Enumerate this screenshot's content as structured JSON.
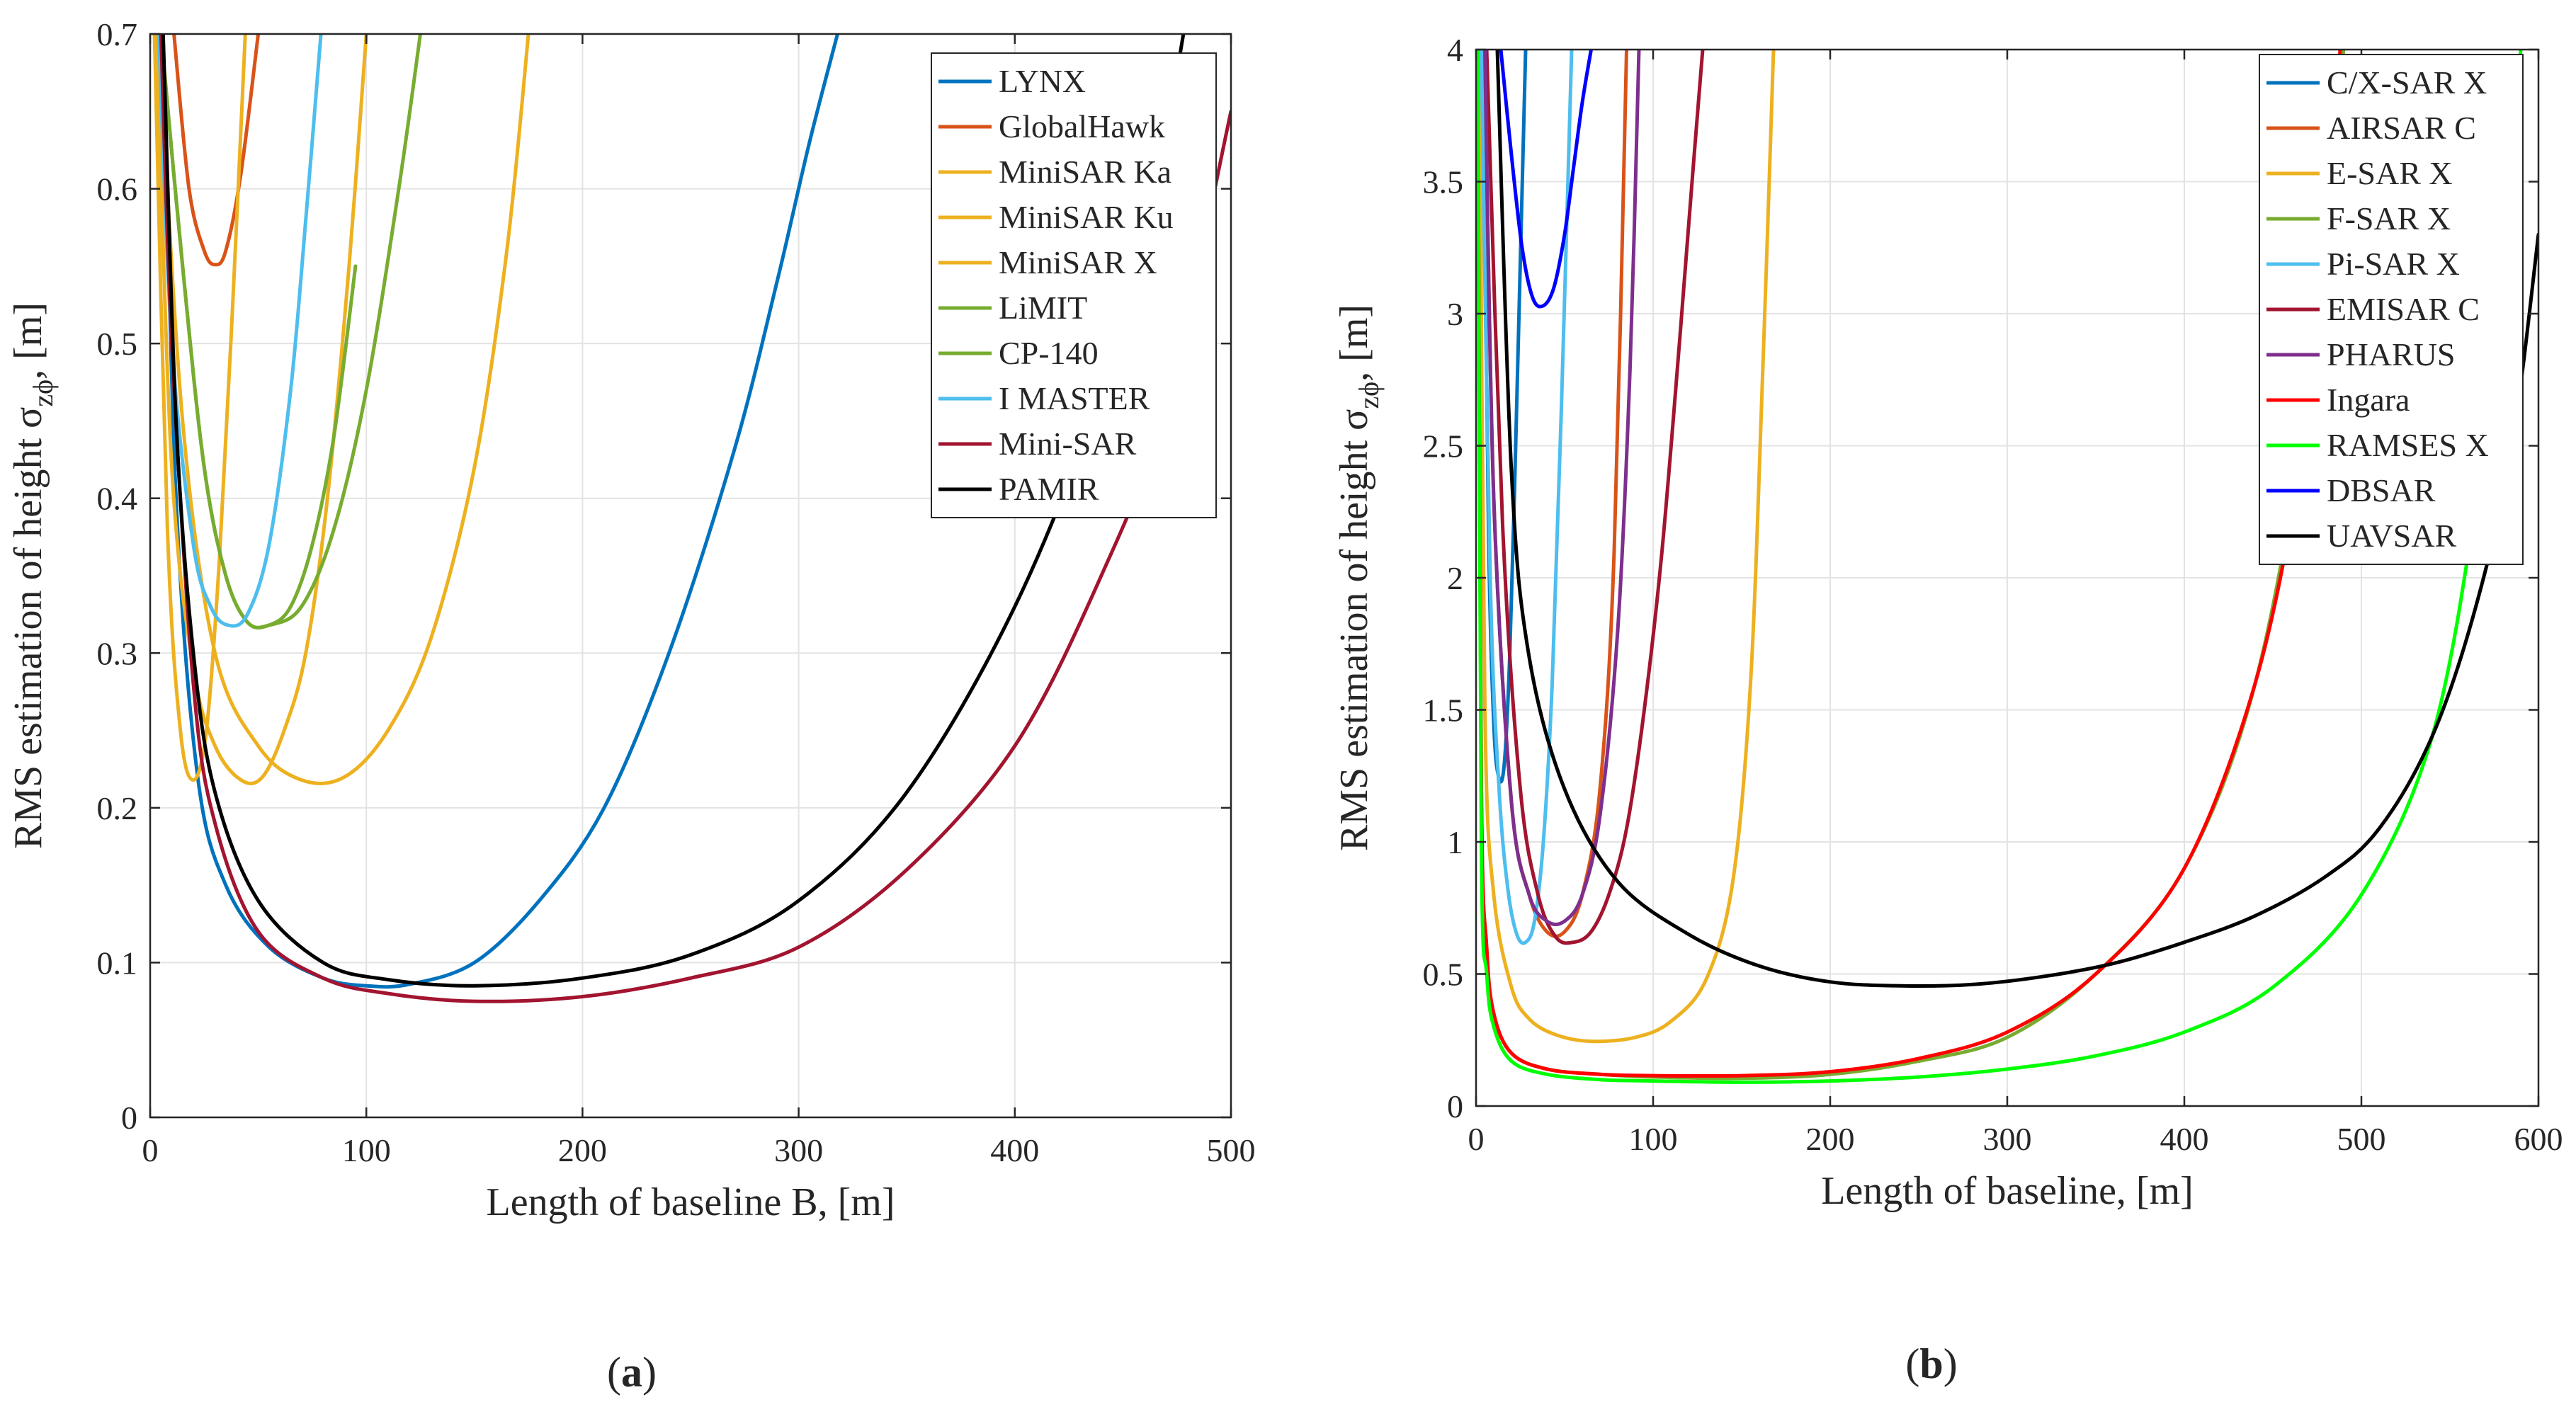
{
  "chart_data": [
    {
      "type": "line",
      "ylabel_main": "RMS estimation of height σ",
      "ylabel_sub": "zϕ",
      "ylabel_tail": ", [m]",
      "xlabel": "Length of baseline B, [m]",
      "xlim": [
        0,
        500
      ],
      "ylim": [
        0,
        0.7
      ],
      "xticks": [
        0,
        100,
        200,
        300,
        400,
        500
      ],
      "yticks": [
        0,
        0.1,
        0.2,
        0.3,
        0.4,
        0.5,
        0.6,
        0.7
      ],
      "xtick_labels": [
        "0",
        "100",
        "200",
        "300",
        "400",
        "500"
      ],
      "ytick_labels": [
        "0",
        "0.1",
        "0.2",
        "0.3",
        "0.4",
        "0.5",
        "0.6",
        "0.7"
      ],
      "grid": true,
      "legend_position": "top-right",
      "panel_label": "(a)",
      "series": [
        {
          "name": "LYNX",
          "color": "#0072BD",
          "x": [
            6,
            12,
            22,
            35,
            55,
            80,
            100,
            120,
            150,
            180,
            210,
            240,
            270,
            290,
            305,
            318
          ],
          "y": [
            0.7,
            0.4,
            0.22,
            0.15,
            0.11,
            0.09,
            0.085,
            0.086,
            0.1,
            0.14,
            0.2,
            0.3,
            0.43,
            0.54,
            0.63,
            0.7
          ]
        },
        {
          "name": "GlobalHawk",
          "color": "#D95319",
          "x": [
            11,
            18,
            25,
            30,
            35,
            42,
            50
          ],
          "y": [
            0.7,
            0.6,
            0.56,
            0.551,
            0.56,
            0.61,
            0.7
          ]
        },
        {
          "name": "MiniSAR Ka",
          "color": "#EDB120",
          "x": [
            2,
            8,
            14,
            20,
            26,
            32,
            38,
            44
          ],
          "y": [
            0.7,
            0.38,
            0.25,
            0.218,
            0.25,
            0.36,
            0.52,
            0.7
          ]
        },
        {
          "name": "MiniSAR Ku",
          "color": "#EDB120",
          "x": [
            3,
            10,
            20,
            30,
            42,
            52,
            62,
            72,
            82,
            92,
            100
          ],
          "y": [
            0.7,
            0.42,
            0.29,
            0.24,
            0.218,
            0.22,
            0.25,
            0.3,
            0.4,
            0.55,
            0.7
          ]
        },
        {
          "name": "MiniSAR X",
          "color": "#EDB120",
          "x": [
            4,
            15,
            30,
            50,
            70,
            90,
            110,
            130,
            150,
            165,
            175
          ],
          "y": [
            0.7,
            0.45,
            0.3,
            0.24,
            0.218,
            0.22,
            0.25,
            0.31,
            0.42,
            0.56,
            0.7
          ]
        },
        {
          "name": "LiMIT",
          "color": "#77AC30",
          "x": [
            5,
            15,
            25,
            35,
            45,
            55,
            65,
            75,
            85,
            95
          ],
          "y": [
            0.7,
            0.55,
            0.42,
            0.35,
            0.32,
            0.318,
            0.33,
            0.37,
            0.44,
            0.55
          ]
        },
        {
          "name": "CP-140",
          "color": "#77AC30",
          "x": [
            5,
            15,
            25,
            35,
            45,
            55,
            70,
            85,
            100,
            115,
            125
          ],
          "y": [
            0.7,
            0.55,
            0.42,
            0.35,
            0.32,
            0.318,
            0.33,
            0.38,
            0.47,
            0.6,
            0.7
          ]
        },
        {
          "name": "I MASTER",
          "color": "#4DBEEE",
          "x": [
            4,
            10,
            20,
            28,
            36,
            45,
            55,
            65,
            72,
            79
          ],
          "y": [
            0.7,
            0.5,
            0.37,
            0.33,
            0.318,
            0.325,
            0.37,
            0.47,
            0.58,
            0.7
          ]
        },
        {
          "name": "Mini-SAR",
          "color": "#A2142F",
          "x": [
            5,
            10,
            20,
            30,
            50,
            80,
            110,
            150,
            200,
            250,
            300,
            350,
            400,
            440,
            470,
            500
          ],
          "y": [
            0.7,
            0.5,
            0.28,
            0.19,
            0.12,
            0.09,
            0.08,
            0.075,
            0.078,
            0.09,
            0.11,
            0.16,
            0.24,
            0.35,
            0.46,
            0.65
          ]
        },
        {
          "name": "PAMIR",
          "color": "#000000",
          "x": [
            6,
            12,
            20,
            30,
            50,
            80,
            110,
            150,
            200,
            250,
            300,
            350,
            400,
            440,
            465,
            478
          ],
          "y": [
            0.7,
            0.45,
            0.3,
            0.21,
            0.14,
            0.1,
            0.089,
            0.085,
            0.09,
            0.105,
            0.14,
            0.21,
            0.33,
            0.47,
            0.6,
            0.7
          ]
        }
      ]
    },
    {
      "type": "line",
      "ylabel_main": "RMS estimation of height σ",
      "ylabel_sub": "zϕ",
      "ylabel_tail": ", [m]",
      "xlabel": "Length of baseline, [m]",
      "xlim": [
        0,
        600
      ],
      "ylim": [
        0,
        4
      ],
      "xticks": [
        0,
        100,
        200,
        300,
        400,
        500,
        600
      ],
      "yticks": [
        0,
        0.5,
        1,
        1.5,
        2,
        2.5,
        3,
        3.5,
        4
      ],
      "xtick_labels": [
        "0",
        "100",
        "200",
        "300",
        "400",
        "500",
        "600"
      ],
      "ytick_labels": [
        "0",
        "0.5",
        "1",
        "1.5",
        "2",
        "2.5",
        "3",
        "3.5",
        "4"
      ],
      "grid": true,
      "legend_position": "top-right",
      "panel_label": "(b)",
      "series": [
        {
          "name": "C/X-SAR X",
          "color": "#0072BD",
          "x": [
            4,
            7,
            10,
            13,
            16,
            19,
            22,
            25,
            28
          ],
          "y": [
            4,
            2.2,
            1.45,
            1.24,
            1.3,
            1.7,
            2.4,
            3.2,
            4
          ]
        },
        {
          "name": "AIRSAR C",
          "color": "#D95319",
          "x": [
            5,
            10,
            20,
            30,
            40,
            50,
            60,
            70,
            78,
            85
          ],
          "y": [
            4,
            2.3,
            1.15,
            0.8,
            0.66,
            0.66,
            0.8,
            1.2,
            2.1,
            4
          ]
        },
        {
          "name": "E-SAR X",
          "color": "#EDB120",
          "x": [
            2,
            5,
            10,
            20,
            30,
            45,
            65,
            90,
            110,
            130,
            145,
            155,
            162,
            168
          ],
          "y": [
            4,
            1.5,
            0.8,
            0.45,
            0.33,
            0.27,
            0.245,
            0.26,
            0.32,
            0.48,
            0.85,
            1.6,
            2.8,
            4
          ]
        },
        {
          "name": "F-SAR X",
          "color": "#77AC30",
          "x": [
            1,
            3,
            6,
            10,
            20,
            40,
            70,
            100,
            150,
            200,
            250,
            300,
            350,
            400,
            440,
            470,
            490
          ],
          "y": [
            4,
            1.2,
            0.6,
            0.35,
            0.2,
            0.14,
            0.12,
            0.11,
            0.105,
            0.12,
            0.17,
            0.26,
            0.5,
            0.9,
            1.6,
            2.7,
            4
          ]
        },
        {
          "name": "Pi-SAR X",
          "color": "#4DBEEE",
          "x": [
            3,
            8,
            13,
            18,
            23,
            28,
            33,
            38,
            43,
            48,
            54
          ],
          "y": [
            4,
            2,
            1.2,
            0.82,
            0.65,
            0.62,
            0.7,
            1.0,
            1.6,
            2.6,
            4
          ]
        },
        {
          "name": "EMISAR C",
          "color": "#A2142F",
          "x": [
            6,
            15,
            25,
            35,
            45,
            55,
            65,
            75,
            85,
            95,
            105,
            115,
            122,
            128
          ],
          "y": [
            4,
            2.2,
            1.2,
            0.8,
            0.64,
            0.62,
            0.66,
            0.8,
            1.05,
            1.5,
            2.1,
            2.9,
            3.5,
            4
          ]
        },
        {
          "name": "PHARUS",
          "color": "#7E2F8E",
          "x": [
            5,
            10,
            20,
            30,
            40,
            50,
            60,
            70,
            80,
            87,
            92
          ],
          "y": [
            4,
            2.3,
            1.15,
            0.8,
            0.7,
            0.7,
            0.8,
            1.1,
            1.8,
            2.8,
            4
          ]
        },
        {
          "name": "Ingara",
          "color": "#FF0000",
          "x": [
            1,
            3,
            6,
            10,
            20,
            40,
            70,
            100,
            150,
            200,
            250,
            300,
            350,
            400,
            440,
            465,
            480,
            488
          ],
          "y": [
            4,
            1.2,
            0.6,
            0.35,
            0.2,
            0.14,
            0.12,
            0.115,
            0.115,
            0.13,
            0.18,
            0.28,
            0.5,
            0.9,
            1.6,
            2.4,
            3.2,
            4
          ]
        },
        {
          "name": "RAMSES X",
          "color": "#00FF00",
          "x": [
            1,
            3,
            6,
            10,
            20,
            40,
            70,
            100,
            150,
            200,
            250,
            300,
            350,
            400,
            450,
            500,
            540,
            565,
            580,
            590
          ],
          "y": [
            4,
            1.0,
            0.5,
            0.3,
            0.17,
            0.12,
            0.1,
            0.095,
            0.09,
            0.095,
            0.11,
            0.14,
            0.19,
            0.28,
            0.45,
            0.8,
            1.4,
            2.3,
            3.2,
            4
          ]
        },
        {
          "name": "DBSAR",
          "color": "#0000FF",
          "x": [
            14,
            20,
            26,
            32,
            38,
            44,
            50,
            55,
            60,
            65
          ],
          "y": [
            4,
            3.6,
            3.25,
            3.06,
            3.03,
            3.1,
            3.3,
            3.55,
            3.8,
            4
          ]
        },
        {
          "name": "UAVSAR",
          "color": "#000000",
          "x": [
            12,
            20,
            30,
            50,
            80,
            120,
            160,
            200,
            240,
            280,
            320,
            360,
            400,
            440,
            480,
            510,
            540,
            565,
            585,
            600
          ],
          "y": [
            4,
            2.4,
            1.7,
            1.2,
            0.85,
            0.65,
            0.53,
            0.47,
            0.455,
            0.46,
            0.49,
            0.54,
            0.62,
            0.72,
            0.87,
            1.05,
            1.4,
            1.9,
            2.5,
            3.3
          ]
        }
      ]
    }
  ]
}
